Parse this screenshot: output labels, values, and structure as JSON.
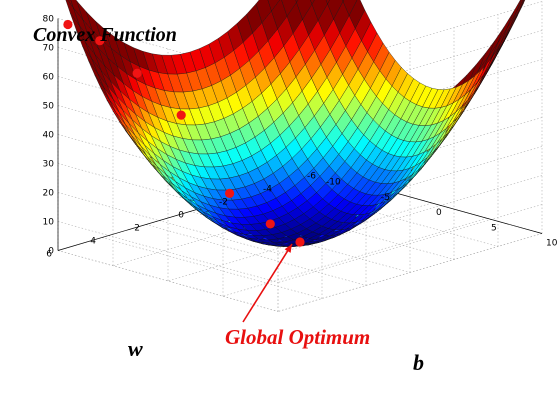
{
  "chart_data": {
    "type": "surface3d",
    "title": "Convex Function",
    "xlabel": "b",
    "ylabel": "w",
    "zlabel": "",
    "xlim": [
      -10,
      10
    ],
    "ylim": [
      -6,
      6
    ],
    "zlim": [
      0,
      80
    ],
    "x_ticks": [
      "-10",
      "-5",
      "0",
      "5",
      "10"
    ],
    "y_ticks": [
      "-6",
      "-4",
      "-2",
      "0",
      "2",
      "4",
      "6"
    ],
    "z_ticks": [
      "0",
      "10",
      "20",
      "30",
      "40",
      "50",
      "60",
      "70",
      "80"
    ],
    "grid": true,
    "colormap": "jet",
    "surface": "z = (b^2 + 2*w^2) * 0.55 (quadratic bowl, minimum 0 at b=0, w=0)",
    "descent_points": [
      {
        "b": -9.5,
        "w": 5.8,
        "z": 78
      },
      {
        "b": -8.2,
        "w": 5.0,
        "z": 72
      },
      {
        "b": -6.8,
        "w": 4.0,
        "z": 60
      },
      {
        "b": -5.0,
        "w": 2.9,
        "z": 45
      },
      {
        "b": -3.2,
        "w": 1.6,
        "z": 17
      },
      {
        "b": -1.5,
        "w": 0.6,
        "z": 6
      },
      {
        "b": 0.0,
        "w": 0.0,
        "z": 0
      }
    ],
    "annotation": "Global Optimum"
  }
}
